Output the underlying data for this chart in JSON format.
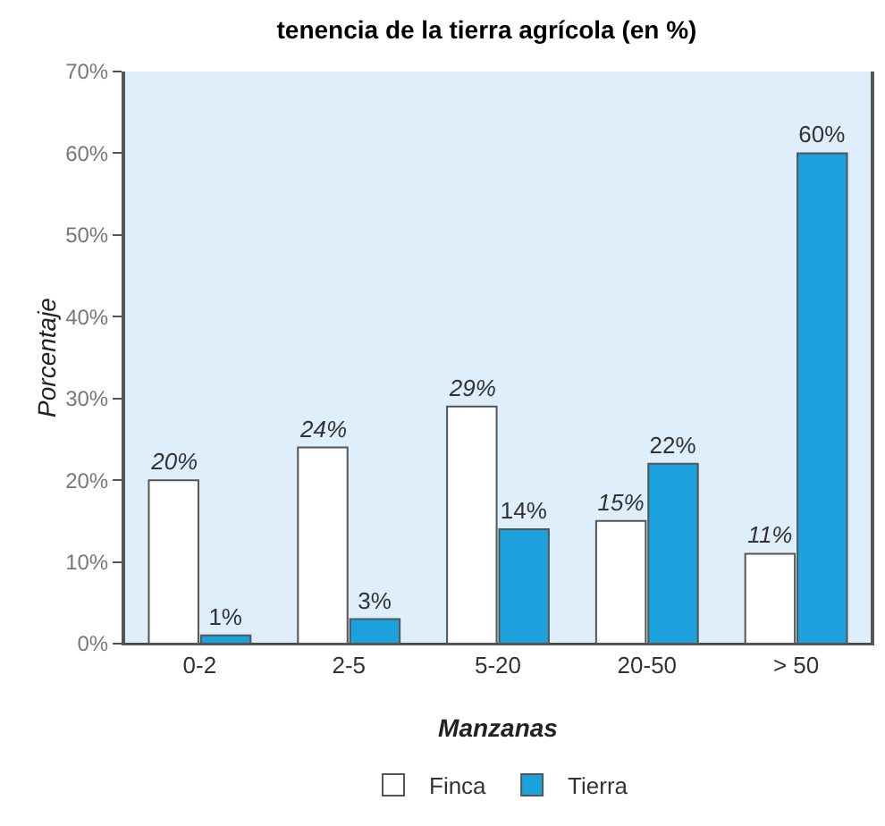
{
  "chart_data": {
    "type": "bar",
    "title": "tenencia de la tierra agrícola (en %)",
    "xlabel": "Manzanas",
    "ylabel": "Porcentaje",
    "categories": [
      "0-2",
      "2-5",
      "5-20",
      "20-50",
      "> 50"
    ],
    "series": [
      {
        "name": "Finca",
        "color": "#ffffff",
        "values": [
          20,
          24,
          29,
          15,
          11
        ],
        "value_labels": [
          "20%",
          "24%",
          "29%",
          "15%",
          "11%"
        ]
      },
      {
        "name": "Tierra",
        "color": "#1ba1dc",
        "values": [
          1,
          3,
          14,
          22,
          60
        ],
        "value_labels": [
          "1%",
          "3%",
          "14%",
          "22%",
          "60%"
        ]
      }
    ],
    "ylim": [
      0,
      70
    ],
    "yticks": [
      {
        "value": 0,
        "label": "0%"
      },
      {
        "value": 10,
        "label": "10%"
      },
      {
        "value": 20,
        "label": "20%"
      },
      {
        "value": 30,
        "label": "30%"
      },
      {
        "value": 40,
        "label": "40%"
      },
      {
        "value": 50,
        "label": "50%"
      },
      {
        "value": 60,
        "label": "60%"
      },
      {
        "value": 70,
        "label": "70%"
      }
    ],
    "grid": false,
    "legend": "bottom"
  }
}
